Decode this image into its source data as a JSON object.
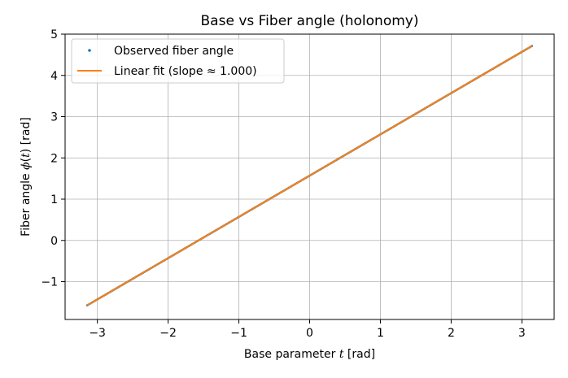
{
  "chart_data": {
    "type": "line",
    "title": "Base vs Fiber angle (holonomy)",
    "xlabel": "Base parameter t [rad]",
    "xlabel_parts": {
      "pre": "Base parameter ",
      "var": "t",
      "post": " [rad]"
    },
    "ylabel": "Fiber angle ϕ(t) [rad]",
    "ylabel_parts": {
      "pre": "Fiber angle ",
      "var": "ϕ",
      "mid": "(",
      "arg": "t",
      "post": ") [rad]"
    },
    "xlim": [
      -3.456,
      3.456
    ],
    "ylim": [
      -1.916,
      5.0
    ],
    "xticks": [
      -3,
      -2,
      -1,
      0,
      1,
      2,
      3
    ],
    "xtick_labels": [
      "−3",
      "−2",
      "−1",
      "0",
      "1",
      "2",
      "3"
    ],
    "yticks": [
      -1,
      0,
      1,
      2,
      3,
      4,
      5
    ],
    "ytick_labels": [
      "−1",
      "0",
      "1",
      "2",
      "3",
      "4",
      "5"
    ],
    "grid": true,
    "legend_position": "upper-left",
    "series": [
      {
        "name": "Observed fiber angle",
        "style": "points",
        "color": "#1f77b4",
        "x_range": [
          -3.14159,
          3.14159
        ],
        "n_points": 400,
        "slope": 1.0,
        "intercept": 1.5708
      },
      {
        "name": "Linear fit (slope ≈ 1.000)",
        "style": "line",
        "color": "#ff7f0e",
        "x": [
          -3.14159,
          3.14159
        ],
        "y": [
          -1.5708,
          4.7124
        ]
      }
    ]
  }
}
